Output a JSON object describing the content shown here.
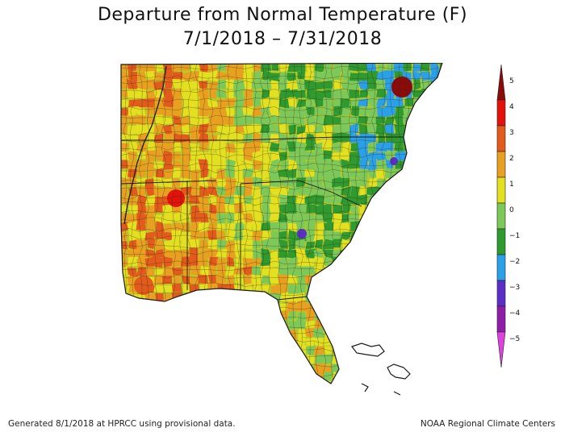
{
  "title": "Departure from Normal Temperature (F)",
  "date_range": "7/1/2018 – 7/31/2018",
  "legend": {
    "ticks": [
      "5",
      "4",
      "3",
      "2",
      "1",
      "0",
      "−1",
      "−2",
      "−3",
      "−4",
      "−5"
    ],
    "bins": [
      {
        "from": 4,
        "to": 5,
        "color": "#8b0a0a"
      },
      {
        "from": 3,
        "to": 4,
        "color": "#e3120b"
      },
      {
        "from": 2,
        "to": 3,
        "color": "#e25a1c"
      },
      {
        "from": 1,
        "to": 2,
        "color": "#e8a020"
      },
      {
        "from": 0,
        "to": 1,
        "color": "#e2e020"
      },
      {
        "from": -1,
        "to": 0,
        "color": "#7cc95a"
      },
      {
        "from": -2,
        "to": -1,
        "color": "#2f9a2f"
      },
      {
        "from": -3,
        "to": -2,
        "color": "#2aa0e8"
      },
      {
        "from": -4,
        "to": -3,
        "color": "#5b2ec8"
      },
      {
        "from": -5,
        "to": -4,
        "color": "#8e1ea8"
      },
      {
        "from": -6,
        "to": -5,
        "color": "#e040e0"
      }
    ]
  },
  "footer": {
    "left": "Generated 8/1/2018 at HPRCC using provisional data.",
    "right": "NOAA Regional Climate Centers"
  }
}
